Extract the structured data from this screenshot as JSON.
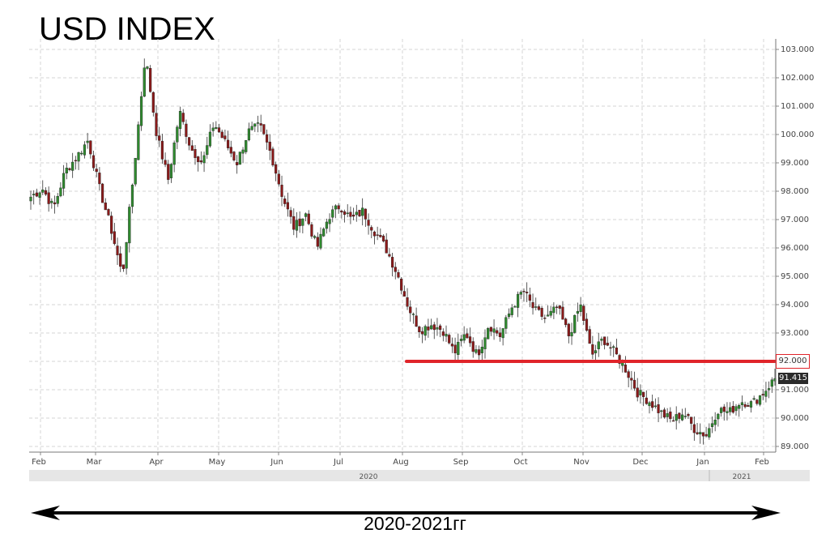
{
  "title": "USD INDEX",
  "footer": "2020-2021гг",
  "price_tag": "91.415",
  "level_label": "92.000",
  "colors": {
    "up": "#2f8a2f",
    "down": "#8b1a1a",
    "level": "#e0242a",
    "grid": "#d6d6d6",
    "arrow": "#000000"
  },
  "chart_data": {
    "type": "candlestick",
    "title": "USD INDEX",
    "ylim": [
      88.7,
      103.3
    ],
    "y_ticks": [
      "89.000",
      "90.000",
      "91.000",
      "92.000",
      "93.000",
      "94.000",
      "95.000",
      "96.000",
      "97.000",
      "98.000",
      "99.000",
      "100.000",
      "101.000",
      "102.000",
      "103.000"
    ],
    "x_ticks": [
      "Feb",
      "Mar",
      "Apr",
      "May",
      "Jun",
      "Jul",
      "Aug",
      "Sep",
      "Oct",
      "Nov",
      "Dec",
      "Jan",
      "Feb"
    ],
    "years": [
      "2020",
      "2021"
    ],
    "level_line": {
      "value": 92.0,
      "from": "Aug"
    },
    "last_price": 91.415,
    "grid": true,
    "close_path": [
      [
        "Feb",
        97.8
      ],
      [
        "Feb",
        98.1
      ],
      [
        "Feb",
        97.4
      ],
      [
        "Feb",
        98.7
      ],
      [
        "Feb",
        99.2
      ],
      [
        "Feb",
        99.8
      ],
      [
        "Mar",
        98.1
      ],
      [
        "Mar",
        96.7
      ],
      [
        "Mar",
        95.0
      ],
      [
        "Mar",
        98.7
      ],
      [
        "Mar",
        102.8
      ],
      [
        "Mar",
        100.0
      ],
      [
        "Apr",
        98.4
      ],
      [
        "Apr",
        100.8
      ],
      [
        "Apr",
        99.5
      ],
      [
        "Apr",
        99.0
      ],
      [
        "May",
        100.4
      ],
      [
        "May",
        99.7
      ],
      [
        "May",
        99.0
      ],
      [
        "May",
        100.1
      ],
      [
        "May",
        100.3
      ],
      [
        "May",
        99.3
      ],
      [
        "Jun",
        97.8
      ],
      [
        "Jun",
        96.7
      ],
      [
        "Jun",
        97.2
      ],
      [
        "Jun",
        96.0
      ],
      [
        "Jun",
        97.1
      ],
      [
        "Jun",
        97.5
      ],
      [
        "Jul",
        97.0
      ],
      [
        "Jul",
        97.3
      ],
      [
        "Jul",
        96.6
      ],
      [
        "Jul",
        96.0
      ],
      [
        "Jul",
        95.1
      ],
      [
        "Jul",
        93.9
      ],
      [
        "Aug",
        93.1
      ],
      [
        "Aug",
        93.3
      ],
      [
        "Aug",
        93.1
      ],
      [
        "Aug",
        92.3
      ],
      [
        "Aug",
        93.0
      ],
      [
        "Sep",
        92.2
      ],
      [
        "Sep",
        93.3
      ],
      [
        "Sep",
        92.9
      ],
      [
        "Sep",
        93.9
      ],
      [
        "Sep",
        94.5
      ],
      [
        "Oct",
        93.8
      ],
      [
        "Oct",
        93.5
      ],
      [
        "Oct",
        93.9
      ],
      [
        "Oct",
        92.9
      ],
      [
        "Nov",
        94.0
      ],
      [
        "Nov",
        92.2
      ],
      [
        "Nov",
        92.8
      ],
      [
        "Nov",
        92.3
      ],
      [
        "Dec",
        91.7
      ],
      [
        "Dec",
        90.9
      ],
      [
        "Dec",
        90.6
      ],
      [
        "Dec",
        90.2
      ],
      [
        "Dec",
        89.9
      ],
      [
        "Dec",
        90.2
      ],
      [
        "Jan",
        89.6
      ],
      [
        "Jan",
        89.4
      ],
      [
        "Jan",
        90.3
      ],
      [
        "Jan",
        90.2
      ],
      [
        "Jan",
        90.6
      ],
      [
        "Jan",
        90.5
      ],
      [
        "Feb",
        90.9
      ],
      [
        "Feb",
        91.4
      ]
    ]
  }
}
